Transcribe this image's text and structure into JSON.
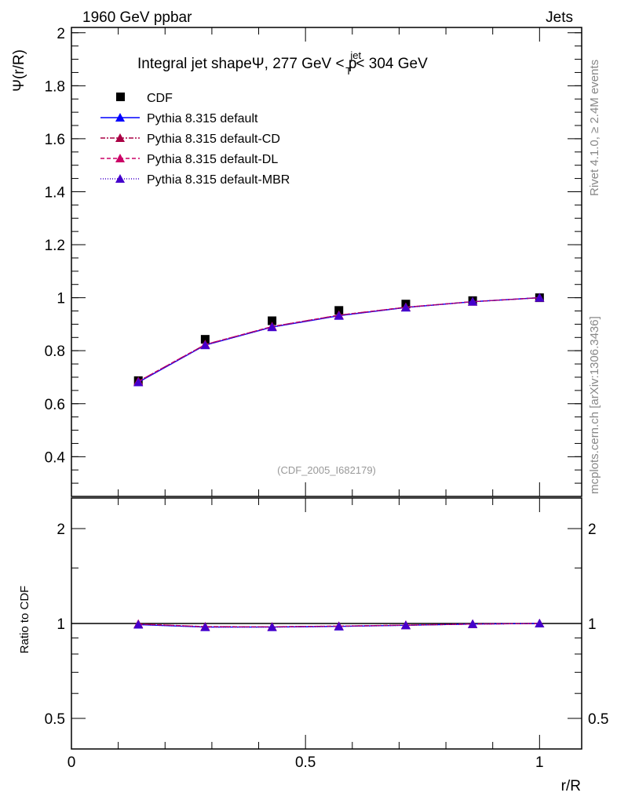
{
  "header": {
    "left": "1960 GeV ppbar",
    "right": "Jets"
  },
  "side_text": {
    "top": "Rivet 4.1.0, ≥ 2.4M events",
    "bottom": "mcplots.cern.ch [arXiv:1306.3436]"
  },
  "chart_data": [
    {
      "type": "line",
      "title_main": "Integral jet shapeΨ, 277 GeV < p",
      "title_sup": "jet",
      "title_sub": "T",
      "title_end": " < 304 GeV",
      "ylabel": "Ψ(r/R)",
      "watermark": "(CDF_2005_I682179)",
      "xlim": [
        0,
        1.09
      ],
      "ylim": [
        0.25,
        2.02
      ],
      "yticks": [
        0.4,
        0.6,
        0.8,
        1,
        1.2,
        1.4,
        1.6,
        1.8,
        2
      ],
      "ytick_labels": [
        "0.4",
        "0.6",
        "0.8",
        "1",
        "1.2",
        "1.4",
        "1.6",
        "1.8",
        "2"
      ],
      "x": [
        0.1429,
        0.2857,
        0.4286,
        0.5714,
        0.7143,
        0.8571,
        1.0
      ],
      "series": [
        {
          "name": "CDF",
          "values": [
            0.687,
            0.843,
            0.913,
            0.952,
            0.976,
            0.989,
            1.0
          ],
          "color": "#000000",
          "marker": "square",
          "dash": ""
        },
        {
          "name": "Pythia 8.315 default",
          "values": [
            0.681,
            0.821,
            0.889,
            0.932,
            0.963,
            0.985,
            1.0
          ],
          "color": "#0000ff",
          "marker": "triangle",
          "dash": ""
        },
        {
          "name": "Pythia 8.315 default-CD",
          "values": [
            0.684,
            0.823,
            0.891,
            0.934,
            0.964,
            0.985,
            1.0
          ],
          "color": "#aa0044",
          "marker": "triangle",
          "dash": "6,2,2,2"
        },
        {
          "name": "Pythia 8.315 default-DL",
          "values": [
            0.684,
            0.823,
            0.891,
            0.934,
            0.964,
            0.985,
            1.0
          ],
          "color": "#cc0066",
          "marker": "triangle",
          "dash": "5,3"
        },
        {
          "name": "Pythia 8.315 default-MBR",
          "values": [
            0.681,
            0.821,
            0.889,
            0.932,
            0.963,
            0.985,
            1.0
          ],
          "color": "#4400cc",
          "marker": "triangle",
          "dash": "1,2"
        }
      ]
    },
    {
      "type": "line",
      "ylabel": "Ratio to CDF",
      "xlabel": "r/R",
      "yscale": "log",
      "xlim": [
        0,
        1.09
      ],
      "ylim": [
        0.4,
        2.5
      ],
      "yticks": [
        0.5,
        1,
        2
      ],
      "ytick_labels": [
        "0.5",
        "1",
        "2"
      ],
      "xticks": [
        0,
        0.5,
        1
      ],
      "xtick_labels": [
        "0",
        "0.5",
        "1"
      ],
      "x": [
        0.1429,
        0.2857,
        0.4286,
        0.5714,
        0.7143,
        0.8571,
        1.0
      ],
      "series": [
        {
          "name": "Pythia 8.315 default",
          "values": [
            0.992,
            0.974,
            0.974,
            0.979,
            0.987,
            0.996,
            1.0
          ],
          "color": "#0000ff",
          "dash": ""
        },
        {
          "name": "Pythia 8.315 default-CD",
          "values": [
            0.996,
            0.977,
            0.976,
            0.981,
            0.988,
            0.996,
            1.0
          ],
          "color": "#aa0044",
          "dash": "6,2,2,2"
        },
        {
          "name": "Pythia 8.315 default-DL",
          "values": [
            0.996,
            0.977,
            0.976,
            0.981,
            0.988,
            0.996,
            1.0
          ],
          "color": "#cc0066",
          "dash": "5,3"
        },
        {
          "name": "Pythia 8.315 default-MBR",
          "values": [
            0.992,
            0.974,
            0.974,
            0.979,
            0.987,
            0.996,
            1.0
          ],
          "color": "#4400cc",
          "dash": "1,2"
        }
      ]
    }
  ]
}
